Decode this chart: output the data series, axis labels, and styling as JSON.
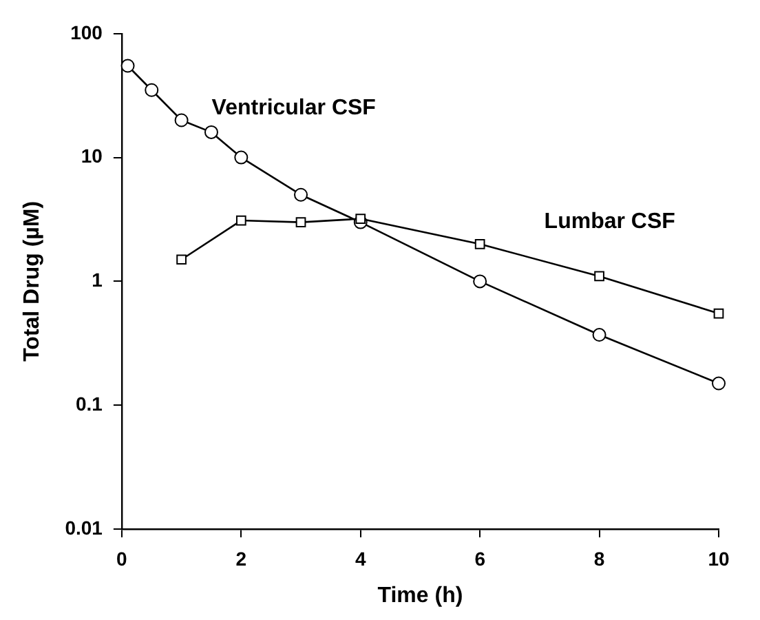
{
  "chart_data": {
    "type": "line",
    "xlabel": "Time (h)",
    "ylabel": "Total Drug (µM)",
    "xlim": [
      0,
      10
    ],
    "xticks": [
      0,
      2,
      4,
      6,
      8,
      10
    ],
    "ylim": [
      0.01,
      100
    ],
    "yticks": [
      0.01,
      0.1,
      1,
      10,
      100
    ],
    "log": "y",
    "grid": false,
    "legend": false,
    "line_style": "solid",
    "series": [
      {
        "name": "Ventricular CSF",
        "color": "#000000",
        "marker": "circle",
        "x": [
          0.1,
          0.5,
          1,
          1.5,
          2,
          3,
          4,
          6,
          8,
          10
        ],
        "values": [
          55,
          35,
          20,
          16,
          10,
          5,
          3,
          1.0,
          0.37,
          0.15
        ]
      },
      {
        "name": "Lumbar CSF",
        "color": "#000000",
        "marker": "square",
        "x": [
          1,
          2,
          3,
          4,
          6,
          8,
          10
        ],
        "values": [
          1.5,
          3.1,
          3.0,
          3.2,
          2.0,
          1.1,
          0.55
        ]
      }
    ]
  }
}
